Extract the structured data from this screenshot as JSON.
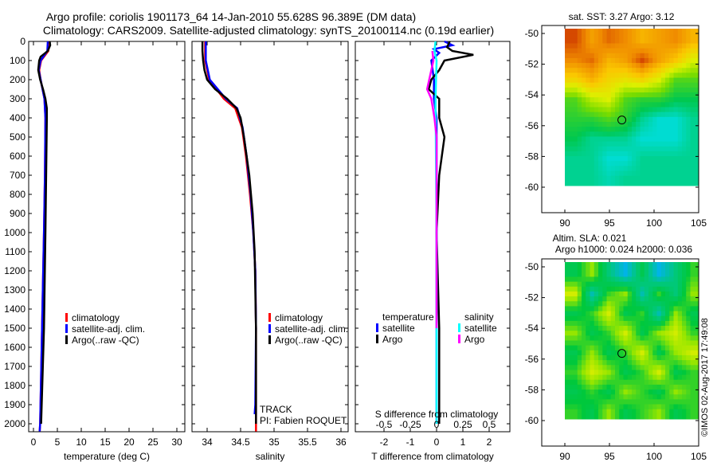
{
  "header": {
    "title_line1": "Argo profile: coriolis 1901173_64 14-Jan-2010 55.628S 96.389E (DM data)",
    "title_line2": "Climatology: CARS2009. Satellite-adjusted climatology: synTS_20100114.nc (0.19d earlier)"
  },
  "depth_ticks": [
    "0",
    "100",
    "200",
    "300",
    "400",
    "500",
    "600",
    "700",
    "800",
    "900",
    "1000",
    "1100",
    "1200",
    "1300",
    "1400",
    "1500",
    "1600",
    "1700",
    "1800",
    "1900",
    "2000"
  ],
  "legend": {
    "climatology": "climatology",
    "satellite": "satellite-adj. clim.",
    "argo": "Argo(..raw -QC)",
    "diff_temperature": "temperature",
    "diff_salinity": "salinity",
    "diff_satellite": "satellite",
    "diff_argo": "Argo"
  },
  "track": {
    "label": "TRACK",
    "pi": "PI: Fabien ROQUET"
  },
  "colors": {
    "climatology": "#ff0000",
    "satellite": "#0000ff",
    "argo": "#000000",
    "s_satellite": "#00ffff",
    "s_argo": "#ff00ff"
  },
  "chart_data": [
    {
      "type": "line",
      "title": "",
      "xlabel": "temperature (deg C)",
      "ylabel": "depth",
      "xlim": [
        -1.5,
        31.5
      ],
      "ylim": [
        2040,
        0
      ],
      "xticks": [
        "0",
        "5",
        "10",
        "15",
        "20",
        "25",
        "30"
      ],
      "series": [
        {
          "name": "climatology",
          "points": [
            [
              3.3,
              0
            ],
            [
              3.1,
              50
            ],
            [
              1.6,
              100
            ],
            [
              1.2,
              150
            ],
            [
              1.5,
              200
            ],
            [
              2.3,
              300
            ],
            [
              2.5,
              400
            ],
            [
              2.4,
              700
            ],
            [
              2.2,
              1000
            ],
            [
              1.8,
              1500
            ],
            [
              1.4,
              2000
            ],
            [
              1.3,
              2040
            ]
          ]
        },
        {
          "name": "satellite-adj. clim.",
          "points": [
            [
              3.0,
              0
            ],
            [
              2.9,
              50
            ],
            [
              1.5,
              100
            ],
            [
              1.1,
              150
            ],
            [
              1.5,
              200
            ],
            [
              2.3,
              300
            ],
            [
              2.5,
              400
            ],
            [
              2.4,
              700
            ],
            [
              2.2,
              1000
            ],
            [
              1.8,
              1500
            ],
            [
              1.4,
              2000
            ],
            [
              1.3,
              2040
            ]
          ]
        },
        {
          "name": "Argo(..raw -QC)",
          "points": [
            [
              3.4,
              0
            ],
            [
              3.5,
              20
            ],
            [
              3.0,
              50
            ],
            [
              1.5,
              80
            ],
            [
              1.2,
              100
            ],
            [
              1.0,
              150
            ],
            [
              1.4,
              200
            ],
            [
              2.0,
              250
            ],
            [
              2.5,
              300
            ],
            [
              2.8,
              350
            ],
            [
              2.8,
              400
            ],
            [
              2.7,
              600
            ],
            [
              2.5,
              1000
            ],
            [
              2.2,
              1500
            ],
            [
              1.6,
              2000
            ]
          ]
        }
      ]
    },
    {
      "type": "line",
      "title": "",
      "xlabel": "salinity",
      "ylabel": "depth",
      "xlim": [
        33.77,
        36.1
      ],
      "ylim": [
        2040,
        0
      ],
      "xticks": [
        "34",
        "34.5",
        "35",
        "35.5",
        "36"
      ],
      "series": [
        {
          "name": "climatology",
          "points": [
            [
              33.97,
              0
            ],
            [
              33.97,
              100
            ],
            [
              34.03,
              200
            ],
            [
              34.25,
              300
            ],
            [
              34.42,
              350
            ],
            [
              34.52,
              450
            ],
            [
              34.58,
              600
            ],
            [
              34.64,
              800
            ],
            [
              34.69,
              1000
            ],
            [
              34.72,
              1200
            ],
            [
              34.73,
              1500
            ],
            [
              34.73,
              2040
            ]
          ]
        },
        {
          "name": "satellite-adj. clim.",
          "points": [
            [
              33.98,
              0
            ],
            [
              33.98,
              100
            ],
            [
              34.04,
              200
            ],
            [
              34.28,
              300
            ],
            [
              34.45,
              350
            ],
            [
              34.53,
              450
            ],
            [
              34.59,
              600
            ],
            [
              34.65,
              800
            ],
            [
              34.69,
              1000
            ],
            [
              34.72,
              1200
            ],
            [
              34.73,
              1500
            ],
            [
              34.72,
              1900
            ],
            [
              34.71,
              1950
            ]
          ]
        },
        {
          "name": "Argo(..raw -QC)",
          "points": [
            [
              33.93,
              0
            ],
            [
              33.93,
              50
            ],
            [
              33.94,
              100
            ],
            [
              33.96,
              150
            ],
            [
              34.0,
              200
            ],
            [
              34.12,
              250
            ],
            [
              34.3,
              300
            ],
            [
              34.44,
              350
            ],
            [
              34.5,
              400
            ],
            [
              34.55,
              500
            ],
            [
              34.63,
              700
            ],
            [
              34.68,
              900
            ],
            [
              34.71,
              1100
            ],
            [
              34.73,
              1500
            ],
            [
              34.73,
              2000
            ]
          ]
        }
      ]
    },
    {
      "type": "line",
      "title": "",
      "xlabel": "T difference from climatology",
      "x2label": "S difference from climatology",
      "xlim": [
        -3,
        2.9
      ],
      "x2lim": [
        -0.75,
        0.725
      ],
      "ylim": [
        2040,
        0
      ],
      "xticks": [
        "-2",
        "-1",
        "0",
        "1",
        "2"
      ],
      "x2ticks": [
        "-0.5",
        "-0.25",
        "0",
        "0.25",
        "0.5"
      ],
      "series": [
        {
          "name": "temperature satellite",
          "axis": "T",
          "points": [
            [
              0.3,
              0
            ],
            [
              0.6,
              20
            ],
            [
              -0.1,
              40
            ],
            [
              0.1,
              60
            ],
            [
              -0.2,
              100
            ],
            [
              -0.1,
              200
            ],
            [
              -0.1,
              300
            ],
            [
              0,
              400
            ],
            [
              0,
              1000
            ],
            [
              0,
              2000
            ]
          ]
        },
        {
          "name": "temperature Argo",
          "axis": "T",
          "points": [
            [
              0.5,
              0
            ],
            [
              0.4,
              30
            ],
            [
              0.6,
              50
            ],
            [
              1.4,
              70
            ],
            [
              0.3,
              100
            ],
            [
              0.1,
              150
            ],
            [
              -0.2,
              200
            ],
            [
              -0.3,
              250
            ],
            [
              0.1,
              300
            ],
            [
              0.1,
              400
            ],
            [
              0.3,
              500
            ],
            [
              0.1,
              700
            ],
            [
              0.0,
              1000
            ],
            [
              0.1,
              1500
            ],
            [
              0.1,
              2000
            ]
          ]
        },
        {
          "name": "salinity satellite",
          "axis": "S",
          "points": [
            [
              -0.01,
              0
            ],
            [
              -0.02,
              50
            ],
            [
              0.0,
              100
            ],
            [
              -0.01,
              300
            ],
            [
              0,
              1000
            ],
            [
              0,
              2000
            ]
          ]
        },
        {
          "name": "salinity Argo",
          "axis": "S",
          "points": [
            [
              -0.04,
              50
            ],
            [
              -0.03,
              100
            ],
            [
              -0.07,
              200
            ],
            [
              -0.09,
              250
            ],
            [
              -0.05,
              300
            ],
            [
              -0.02,
              400
            ],
            [
              0,
              500
            ],
            [
              0,
              1000
            ],
            [
              0,
              1500
            ]
          ]
        }
      ]
    },
    {
      "type": "heatmap",
      "title": "sat. SST: 3.27 Argo: 3.12",
      "xlim": [
        87.5,
        105.2
      ],
      "ylim": [
        -61.6,
        -49.6
      ],
      "xticks": [
        "90",
        "95",
        "100",
        "105"
      ],
      "yticks": [
        "-50",
        "-52",
        "-54",
        "-56",
        "-58",
        "-60"
      ],
      "lon_range": [
        90,
        105
      ],
      "lat_range": [
        -50,
        -60
      ],
      "argo_position": [
        96.39,
        -55.63
      ],
      "grid": [
        [
          5.8,
          5.2,
          5.6,
          5.4,
          5.0,
          5.2,
          5.4,
          5.0
        ],
        [
          5.4,
          5.6,
          5.0,
          5.2,
          5.8,
          5.2,
          4.8,
          4.2
        ],
        [
          4.6,
          5.0,
          4.6,
          4.4,
          4.6,
          4.2,
          3.4,
          3.4
        ],
        [
          3.4,
          4.0,
          4.2,
          3.4,
          3.2,
          3.2,
          3.0,
          3.0
        ],
        [
          3.2,
          3.2,
          3.4,
          3.2,
          2.8,
          2.6,
          2.6,
          2.8
        ],
        [
          3.0,
          2.8,
          2.8,
          2.8,
          2.6,
          2.6,
          2.6,
          2.8
        ],
        [
          2.8,
          2.8,
          2.6,
          2.6,
          2.8,
          2.8,
          2.8,
          2.8
        ],
        [
          2.8,
          2.8,
          2.7,
          2.8,
          2.8,
          2.8,
          2.8,
          2.8
        ]
      ]
    },
    {
      "type": "heatmap",
      "title": "Altim. SLA: 0.021",
      "subtitle": "Argo h1000: 0.024 h2000: 0.036",
      "xlim": [
        87.5,
        105.2
      ],
      "ylim": [
        -61.6,
        -49.6
      ],
      "xticks": [
        "90",
        "95",
        "100",
        "105"
      ],
      "yticks": [
        "-50",
        "-52",
        "-54",
        "-56",
        "-58",
        "-60"
      ],
      "lon_range": [
        90,
        105
      ],
      "lat_range": [
        -50,
        -60
      ],
      "argo_position": [
        96.39,
        -55.63
      ],
      "grid": [
        [
          0.3,
          0.5,
          0.2,
          0.0,
          0.3,
          0.0,
          0.2,
          0.4
        ],
        [
          0.6,
          0.1,
          0.4,
          0.5,
          0.1,
          0.4,
          0.2,
          0.5
        ],
        [
          0.3,
          0.4,
          0.6,
          0.3,
          0.4,
          0.1,
          0.5,
          0.3
        ],
        [
          0.5,
          0.3,
          0.4,
          0.6,
          0.3,
          0.5,
          0.6,
          0.4
        ],
        [
          0.3,
          0.5,
          0.3,
          0.4,
          0.6,
          0.3,
          0.5,
          0.6
        ],
        [
          0.4,
          0.6,
          0.5,
          0.3,
          0.4,
          0.6,
          0.3,
          0.4
        ],
        [
          0.3,
          0.4,
          0.3,
          0.5,
          0.4,
          0.3,
          0.5,
          0.4
        ],
        [
          0.4,
          0.3,
          0.5,
          0.3,
          0.4,
          0.5,
          0.3,
          0.4
        ]
      ]
    }
  ],
  "watermark": "©IMOS 02-Aug-2017 17:49:08"
}
